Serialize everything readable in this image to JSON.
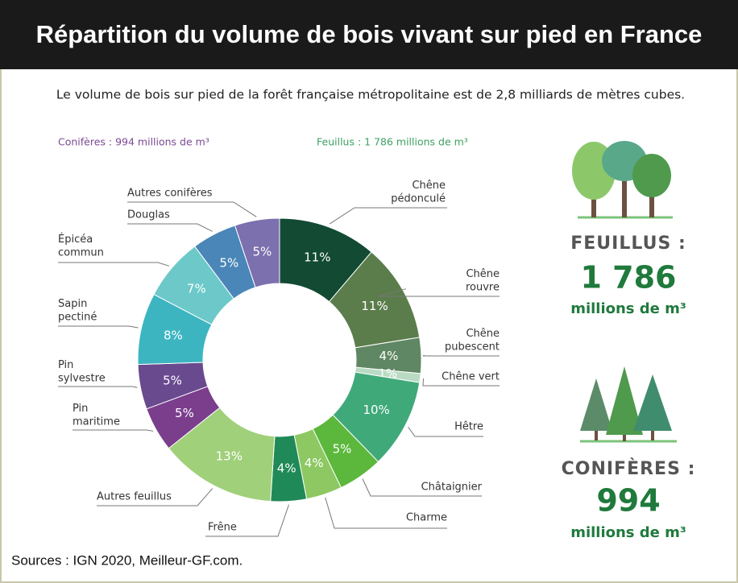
{
  "chart_data": {
    "type": "donut",
    "title": "Répartition du volume de bois vivant sur pied en France",
    "subtitle": "Le volume de bois sur pied de la forêt française métropolitaine est de 2,8 milliards de mètres cubes.",
    "group_labels": [
      "Conifères : 994 millions de m³",
      "Feuillus : 1 786 millions de m³"
    ],
    "categories": [
      "Chêne\npédonculé",
      "Chêne\nrouvre",
      "Chêne\npubescent",
      "Chêne vert",
      "Hêtre",
      "Châtaignier",
      "Charme",
      "Frêne",
      "Autres feuillus",
      "Pin\nmaritime",
      "Pin\nsylvestre",
      "Sapin\npectiné",
      "Épicéa\ncommun",
      "Douglas",
      "Autres conifères"
    ],
    "values": [
      11,
      11,
      4,
      1,
      10,
      5,
      4,
      4,
      13,
      5,
      5,
      8,
      7,
      5,
      5
    ],
    "value_labels": [
      "11%",
      "11%",
      "4%",
      "1%",
      "10%",
      "5%",
      "4%",
      "4%",
      "13%",
      "5%",
      "5%",
      "8%",
      "7%",
      "5%",
      "5%"
    ],
    "colors": [
      "#124a33",
      "#5b7d4c",
      "#5f8763",
      "#b9dac3",
      "#40a97a",
      "#5cb83c",
      "#8dc862",
      "#1f8a57",
      "#a0d07a",
      "#7b3e8d",
      "#6a4a8f",
      "#3cb5c1",
      "#6dc9c9",
      "#4a86b8",
      "#7c70ae"
    ],
    "summary": [
      {
        "heading": "FEUILLUS :",
        "amount": "1 786",
        "unit": "millions de m³"
      },
      {
        "heading": "CONIFÈRES :",
        "amount": "994",
        "unit": "millions de m³"
      }
    ],
    "source": "Sources : IGN 2020, Meilleur-GF.com."
  }
}
